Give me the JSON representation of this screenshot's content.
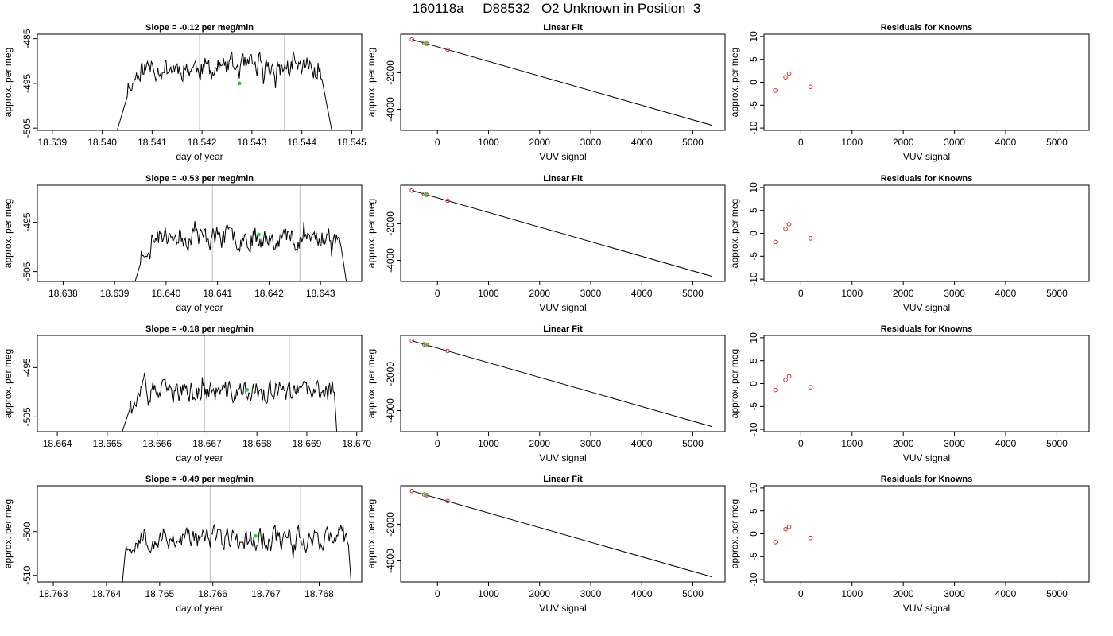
{
  "page": {
    "title": "160118a     D88532   O2 Unknown in Position  3"
  },
  "chart_data": [
    {
      "type": "line",
      "title": "Slope =  -0.12  per meg/min",
      "xlabel": "day of year",
      "ylabel": "approx. per meg",
      "xlim": [
        18.5387,
        18.5452
      ],
      "ylim": [
        -505.5,
        -484.0
      ],
      "xticks": [
        "18.539",
        "18.540",
        "18.541",
        "18.542",
        "18.543",
        "18.544",
        "18.545"
      ],
      "xtick_values": [
        18.539,
        18.54,
        18.541,
        18.542,
        18.543,
        18.544,
        18.545
      ],
      "yticks": [
        "-505",
        "-495",
        "-485"
      ],
      "ytick_values": [
        -505,
        -495,
        -485
      ],
      "vlines": [
        18.54195,
        18.54365
      ],
      "x_start": 18.5403,
      "x_end": 18.5446,
      "points": 210,
      "trace_mean": -491.5,
      "trace_amp": 4.0,
      "seed": 11,
      "drops": [
        [
          18.5403,
          -505.5,
          18.5405,
          -498.0
        ],
        [
          18.5444,
          -494.0,
          18.5446,
          -505.5
        ]
      ],
      "marker": [
        18.54275,
        -495.0
      ]
    },
    {
      "type": "scatter",
      "title": "Linear Fit",
      "xlabel": "VUV signal",
      "ylabel": "approx. per meg",
      "xlim": [
        -720,
        5630
      ],
      "ylim": [
        -5150,
        100
      ],
      "xticks": [
        "0",
        "1000",
        "2000",
        "3000",
        "4000",
        "5000"
      ],
      "xtick_values": [
        0,
        1000,
        2000,
        3000,
        4000,
        5000
      ],
      "yticks": [
        "-4000",
        "-2000"
      ],
      "ytick_values": [
        -4000,
        -2000
      ],
      "fit_line": [
        [
          -500,
          -190
        ],
        [
          5380,
          -4880
        ]
      ],
      "knowns": [
        [
          -500,
          -190
        ],
        [
          -260,
          -380
        ],
        [
          -210,
          -420
        ],
        [
          200,
          -745
        ]
      ],
      "unknown": [
        -230,
        -405
      ]
    },
    {
      "type": "scatter",
      "title": "Residuals for Knowns",
      "xlabel": "VUV signal",
      "ylabel": "approx. per meg",
      "xlim": [
        -720,
        5630
      ],
      "ylim": [
        -10.5,
        10.5
      ],
      "xticks": [
        "0",
        "1000",
        "2000",
        "3000",
        "4000",
        "5000"
      ],
      "xtick_values": [
        0,
        1000,
        2000,
        3000,
        4000,
        5000
      ],
      "yticks": [
        "-10",
        "-5",
        "0",
        "5",
        "10"
      ],
      "ytick_values": [
        -10,
        -5,
        0,
        5,
        10
      ],
      "points": [
        [
          -500,
          -1.8
        ],
        [
          -300,
          1.1
        ],
        [
          -230,
          1.9
        ],
        [
          190,
          -1.0
        ]
      ]
    },
    {
      "type": "line",
      "title": "Slope =  -0.53  per meg/min",
      "xlabel": "day of year",
      "ylabel": "approx. per meg",
      "xlim": [
        18.6375,
        18.6438
      ],
      "ylim": [
        -507.0,
        -487.5
      ],
      "xticks": [
        "18.638",
        "18.639",
        "18.640",
        "18.641",
        "18.642",
        "18.643"
      ],
      "xtick_values": [
        18.638,
        18.639,
        18.64,
        18.641,
        18.642,
        18.643
      ],
      "yticks": [
        "-505",
        "-495"
      ],
      "ytick_values": [
        -505,
        -495
      ],
      "vlines": [
        18.6409,
        18.6426
      ],
      "x_start": 18.6394,
      "x_end": 18.6435,
      "points": 210,
      "trace_mean": -498.0,
      "trace_amp": 3.6,
      "seed": 23,
      "drops": [
        [
          18.6394,
          -507.0,
          18.6395,
          -503.5
        ],
        [
          18.6434,
          -500.0,
          18.6435,
          -507.0
        ]
      ],
      "marker": [
        18.6418,
        -497.5
      ]
    },
    {
      "type": "scatter",
      "title": "Linear Fit",
      "xlabel": "VUV signal",
      "ylabel": "approx. per meg",
      "xlim": [
        -720,
        5630
      ],
      "ylim": [
        -5150,
        100
      ],
      "xticks": [
        "0",
        "1000",
        "2000",
        "3000",
        "4000",
        "5000"
      ],
      "xtick_values": [
        0,
        1000,
        2000,
        3000,
        4000,
        5000
      ],
      "yticks": [
        "-4000",
        "-2000"
      ],
      "ytick_values": [
        -4000,
        -2000
      ],
      "fit_line": [
        [
          -500,
          -190
        ],
        [
          5380,
          -4880
        ]
      ],
      "knowns": [
        [
          -500,
          -190
        ],
        [
          -260,
          -380
        ],
        [
          -210,
          -420
        ],
        [
          200,
          -745
        ]
      ],
      "unknown": [
        -230,
        -405
      ]
    },
    {
      "type": "scatter",
      "title": "Residuals for Knowns",
      "xlabel": "VUV signal",
      "ylabel": "approx. per meg",
      "xlim": [
        -720,
        5630
      ],
      "ylim": [
        -10.5,
        10.5
      ],
      "xticks": [
        "0",
        "1000",
        "2000",
        "3000",
        "4000",
        "5000"
      ],
      "xtick_values": [
        0,
        1000,
        2000,
        3000,
        4000,
        5000
      ],
      "yticks": [
        "-10",
        "-5",
        "0",
        "5",
        "10"
      ],
      "ytick_values": [
        -10,
        -5,
        0,
        5,
        10
      ],
      "points": [
        [
          -500,
          -1.9
        ],
        [
          -300,
          1.0
        ],
        [
          -230,
          2.0
        ],
        [
          190,
          -1.1
        ]
      ]
    },
    {
      "type": "line",
      "title": "Slope =  -0.18  per meg/min",
      "xlabel": "day of year",
      "ylabel": "approx. per meg",
      "xlim": [
        18.6636,
        18.6701
      ],
      "ylim": [
        -508.0,
        -488.5
      ],
      "xticks": [
        "18.664",
        "18.665",
        "18.666",
        "18.667",
        "18.668",
        "18.669",
        "18.670"
      ],
      "xtick_values": [
        18.664,
        18.665,
        18.666,
        18.667,
        18.668,
        18.669,
        18.67
      ],
      "yticks": [
        "-505",
        "-495"
      ],
      "ytick_values": [
        -505,
        -495
      ],
      "vlines": [
        18.66695,
        18.66865
      ],
      "x_start": 18.6653,
      "x_end": 18.6696,
      "points": 220,
      "trace_mean": -500.0,
      "trace_amp": 3.4,
      "seed": 37,
      "drops": [
        [
          18.6653,
          -508.0,
          18.66545,
          -503.5
        ],
        [
          18.66955,
          -500.0,
          18.6696,
          -508.0
        ]
      ],
      "marker": [
        18.6678,
        -499.5
      ]
    },
    {
      "type": "scatter",
      "title": "Linear Fit",
      "xlabel": "VUV signal",
      "ylabel": "approx. per meg",
      "xlim": [
        -720,
        5630
      ],
      "ylim": [
        -5150,
        100
      ],
      "xticks": [
        "0",
        "1000",
        "2000",
        "3000",
        "4000",
        "5000"
      ],
      "xtick_values": [
        0,
        1000,
        2000,
        3000,
        4000,
        5000
      ],
      "yticks": [
        "-4000",
        "-2000"
      ],
      "ytick_values": [
        -4000,
        -2000
      ],
      "fit_line": [
        [
          -500,
          -190
        ],
        [
          5380,
          -4880
        ]
      ],
      "knowns": [
        [
          -500,
          -190
        ],
        [
          -260,
          -380
        ],
        [
          -210,
          -420
        ],
        [
          200,
          -745
        ]
      ],
      "unknown": [
        -230,
        -405
      ]
    },
    {
      "type": "scatter",
      "title": "Residuals for Knowns",
      "xlabel": "VUV signal",
      "ylabel": "approx. per meg",
      "xlim": [
        -720,
        5630
      ],
      "ylim": [
        -10.5,
        10.5
      ],
      "xticks": [
        "0",
        "1000",
        "2000",
        "3000",
        "4000",
        "5000"
      ],
      "xtick_values": [
        0,
        1000,
        2000,
        3000,
        4000,
        5000
      ],
      "yticks": [
        "-10",
        "-5",
        "0",
        "5",
        "10"
      ],
      "ytick_values": [
        -10,
        -5,
        0,
        5,
        10
      ],
      "points": [
        [
          -500,
          -1.4
        ],
        [
          -300,
          0.8
        ],
        [
          -230,
          1.6
        ],
        [
          190,
          -0.8
        ]
      ]
    },
    {
      "type": "line",
      "title": "Slope =  -0.49  per meg/min",
      "xlabel": "day of year",
      "ylabel": "approx. per meg",
      "xlim": [
        18.7627,
        18.7688
      ],
      "ylim": [
        -511.5,
        -489.5
      ],
      "xticks": [
        "18.763",
        "18.764",
        "18.765",
        "18.766",
        "18.767",
        "18.768"
      ],
      "xtick_values": [
        18.763,
        18.764,
        18.765,
        18.766,
        18.767,
        18.768
      ],
      "yticks": [
        "-510",
        "-500"
      ],
      "ytick_values": [
        -510,
        -500
      ],
      "vlines": [
        18.76595,
        18.76765
      ],
      "x_start": 18.7643,
      "x_end": 18.7686,
      "points": 210,
      "trace_mean": -501.5,
      "trace_amp": 4.2,
      "seed": 53,
      "drops": [
        [
          18.7643,
          -511.5,
          18.76435,
          -505.0
        ],
        [
          18.76855,
          -503.0,
          18.7686,
          -511.5
        ]
      ],
      "marker": [
        18.7668,
        -501.0
      ]
    },
    {
      "type": "scatter",
      "title": "Linear Fit",
      "xlabel": "VUV signal",
      "ylabel": "approx. per meg",
      "xlim": [
        -720,
        5630
      ],
      "ylim": [
        -5150,
        100
      ],
      "xticks": [
        "0",
        "1000",
        "2000",
        "3000",
        "4000",
        "5000"
      ],
      "xtick_values": [
        0,
        1000,
        2000,
        3000,
        4000,
        5000
      ],
      "yticks": [
        "-4000",
        "-2000"
      ],
      "ytick_values": [
        -4000,
        -2000
      ],
      "fit_line": [
        [
          -500,
          -190
        ],
        [
          5380,
          -4880
        ]
      ],
      "knowns": [
        [
          -500,
          -190
        ],
        [
          -260,
          -380
        ],
        [
          -210,
          -420
        ],
        [
          200,
          -745
        ]
      ],
      "unknown": [
        -230,
        -405
      ]
    },
    {
      "type": "scatter",
      "title": "Residuals for Knowns",
      "xlabel": "VUV signal",
      "ylabel": "approx. per meg",
      "xlim": [
        -720,
        5630
      ],
      "ylim": [
        -10.5,
        10.5
      ],
      "xticks": [
        "0",
        "1000",
        "2000",
        "3000",
        "4000",
        "5000"
      ],
      "xtick_values": [
        0,
        1000,
        2000,
        3000,
        4000,
        5000
      ],
      "yticks": [
        "-10",
        "-5",
        "0",
        "5",
        "10"
      ],
      "ytick_values": [
        -10,
        -5,
        0,
        5,
        10
      ],
      "points": [
        [
          -500,
          -1.8
        ],
        [
          -300,
          1.0
        ],
        [
          -230,
          1.5
        ],
        [
          190,
          -0.9
        ]
      ]
    }
  ],
  "colors": {
    "trace": "#000000",
    "vline": "#c8c8c8",
    "known_point": "#cc3333",
    "unknown_point": "#33cc33",
    "axes": "#000000"
  }
}
